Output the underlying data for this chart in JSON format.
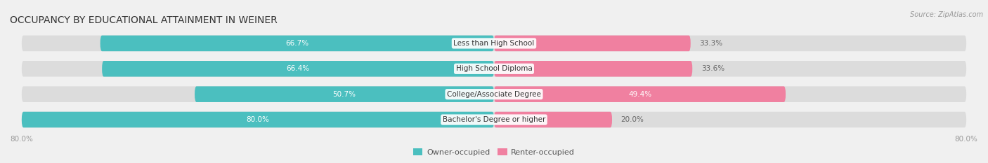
{
  "title": "OCCUPANCY BY EDUCATIONAL ATTAINMENT IN WEINER",
  "source": "Source: ZipAtlas.com",
  "categories": [
    "Less than High School",
    "High School Diploma",
    "College/Associate Degree",
    "Bachelor's Degree or higher"
  ],
  "owner_values": [
    66.7,
    66.4,
    50.7,
    80.0
  ],
  "renter_values": [
    33.3,
    33.6,
    49.4,
    20.0
  ],
  "owner_color": "#4bbfbf",
  "renter_color": "#f080a0",
  "owner_label": "Owner-occupied",
  "renter_label": "Renter-occupied",
  "owner_label_color": "white",
  "renter_label_color_inside": "white",
  "renter_label_color_outside": "#666666",
  "xlim_left": -80.0,
  "xlim_right": 80.0,
  "x_tick_labels": [
    "80.0%",
    "80.0%"
  ],
  "bar_height": 0.62,
  "background_color": "#f0f0f0",
  "bar_bg_color": "#dcdcdc",
  "title_fontsize": 10,
  "source_fontsize": 7,
  "label_fontsize": 7.5,
  "category_fontsize": 7.5,
  "tick_fontsize": 7.5,
  "legend_fontsize": 8,
  "rounding_size": 0.25
}
